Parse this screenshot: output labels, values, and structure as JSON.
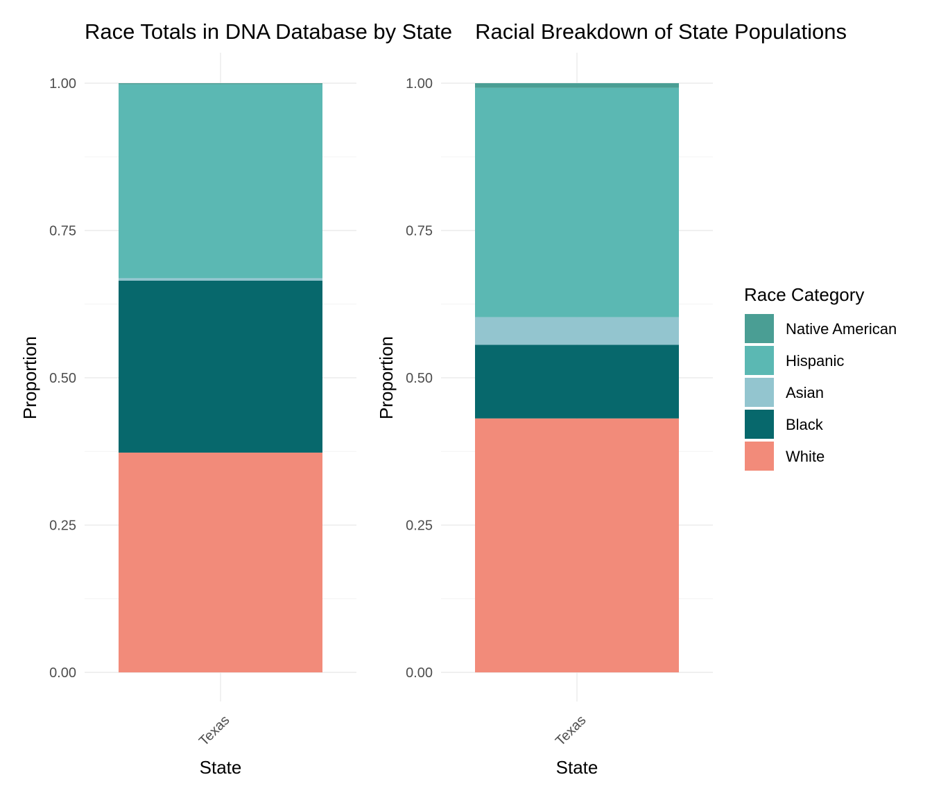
{
  "colors": {
    "Native American": "#4a9e94",
    "Hispanic": "#5bb8b3",
    "Asian": "#93c5cf",
    "Black": "#07686c",
    "White": "#f28b7a"
  },
  "legend": {
    "title": "Race Category",
    "items": [
      "Native American",
      "Hispanic",
      "Asian",
      "Black",
      "White"
    ]
  },
  "chart_data": [
    {
      "type": "bar",
      "stacked": true,
      "title": "Race Totals in DNA Database by State",
      "xlabel": "State",
      "ylabel": "Proportion",
      "categories": [
        "Texas"
      ],
      "ylim": [
        0,
        1
      ],
      "yticks": [
        "0.00",
        "0.25",
        "0.50",
        "0.75",
        "1.00"
      ],
      "grid": true,
      "series": [
        {
          "name": "White",
          "values": [
            0.373
          ]
        },
        {
          "name": "Black",
          "values": [
            0.292
          ]
        },
        {
          "name": "Asian",
          "values": [
            0.004
          ]
        },
        {
          "name": "Hispanic",
          "values": [
            0.329
          ]
        },
        {
          "name": "Native American",
          "values": [
            0.002
          ]
        }
      ]
    },
    {
      "type": "bar",
      "stacked": true,
      "title": "Racial Breakdown of State Populations",
      "xlabel": "State",
      "ylabel": "Proportion",
      "categories": [
        "Texas"
      ],
      "ylim": [
        0,
        1
      ],
      "yticks": [
        "0.00",
        "0.25",
        "0.50",
        "0.75",
        "1.00"
      ],
      "grid": true,
      "legend_position": "right",
      "series": [
        {
          "name": "White",
          "values": [
            0.431
          ]
        },
        {
          "name": "Black",
          "values": [
            0.125
          ]
        },
        {
          "name": "Asian",
          "values": [
            0.047
          ]
        },
        {
          "name": "Hispanic",
          "values": [
            0.389
          ]
        },
        {
          "name": "Native American",
          "values": [
            0.008
          ]
        }
      ]
    }
  ]
}
